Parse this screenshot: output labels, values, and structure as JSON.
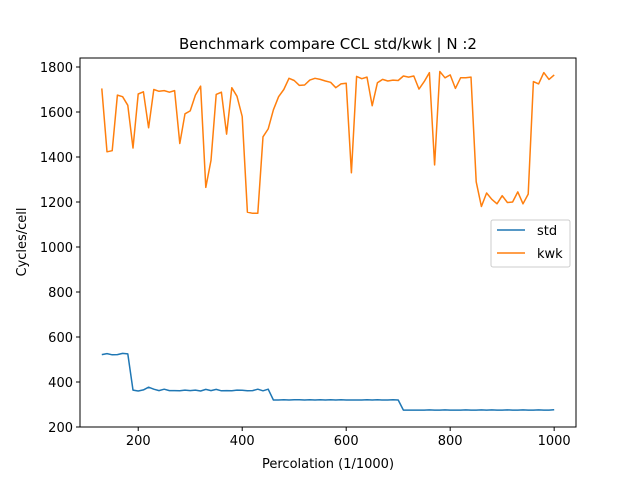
{
  "chart_data": {
    "type": "line",
    "title": "Benchmark compare CCL std/kwk | N :2",
    "xlabel": "Percolation (1/1000)",
    "ylabel": "Cycles/cell",
    "xlim": [
      88,
      1042
    ],
    "ylim": [
      200,
      1840
    ],
    "xticks": [
      200,
      400,
      600,
      800,
      1000
    ],
    "yticks": [
      200,
      400,
      600,
      800,
      1000,
      1200,
      1400,
      1600,
      1800
    ],
    "grid": false,
    "legend_position": "center-right",
    "x": [
      130,
      140,
      150,
      160,
      170,
      180,
      190,
      200,
      210,
      220,
      230,
      240,
      250,
      260,
      270,
      280,
      290,
      300,
      310,
      320,
      330,
      340,
      350,
      360,
      370,
      380,
      390,
      400,
      410,
      420,
      430,
      440,
      450,
      460,
      470,
      480,
      490,
      500,
      510,
      520,
      530,
      540,
      550,
      560,
      570,
      580,
      590,
      600,
      610,
      620,
      630,
      640,
      650,
      660,
      670,
      680,
      690,
      700,
      710,
      720,
      730,
      740,
      750,
      760,
      770,
      780,
      790,
      800,
      810,
      820,
      830,
      840,
      850,
      860,
      870,
      880,
      890,
      900,
      910,
      920,
      930,
      940,
      950,
      960,
      970,
      980,
      990,
      1000
    ],
    "series": [
      {
        "name": "std",
        "color": "#1f77b4",
        "values": [
          522,
          526,
          521,
          522,
          527,
          525,
          364,
          360,
          365,
          377,
          368,
          362,
          368,
          362,
          362,
          361,
          364,
          362,
          364,
          360,
          367,
          362,
          367,
          361,
          362,
          361,
          364,
          363,
          361,
          362,
          368,
          361,
          368,
          320,
          320,
          321,
          320,
          321,
          321,
          320,
          321,
          320,
          321,
          320,
          321,
          320,
          321,
          320,
          320,
          320,
          320,
          321,
          320,
          321,
          320,
          320,
          321,
          320,
          275,
          275,
          275,
          275,
          275,
          276,
          275,
          275,
          276,
          275,
          275,
          275,
          276,
          275,
          275,
          276,
          275,
          276,
          275,
          275,
          276,
          275,
          275,
          276,
          275,
          275,
          276,
          275,
          275,
          277
        ]
      },
      {
        "name": "kwk",
        "color": "#ff7f0e",
        "values": [
          1705,
          1423,
          1428,
          1675,
          1668,
          1630,
          1440,
          1680,
          1690,
          1530,
          1700,
          1692,
          1695,
          1688,
          1695,
          1460,
          1592,
          1605,
          1675,
          1715,
          1265,
          1385,
          1678,
          1688,
          1502,
          1708,
          1670,
          1580,
          1155,
          1150,
          1150,
          1490,
          1525,
          1610,
          1668,
          1700,
          1750,
          1740,
          1718,
          1720,
          1742,
          1750,
          1745,
          1738,
          1732,
          1708,
          1725,
          1728,
          1330,
          1758,
          1748,
          1755,
          1628,
          1730,
          1745,
          1738,
          1742,
          1740,
          1760,
          1755,
          1760,
          1702,
          1735,
          1775,
          1365,
          1780,
          1752,
          1765,
          1705,
          1752,
          1752,
          1755,
          1290,
          1180,
          1240,
          1212,
          1192,
          1228,
          1198,
          1200,
          1245,
          1192,
          1235,
          1735,
          1725,
          1775,
          1745,
          1765
        ]
      }
    ]
  }
}
